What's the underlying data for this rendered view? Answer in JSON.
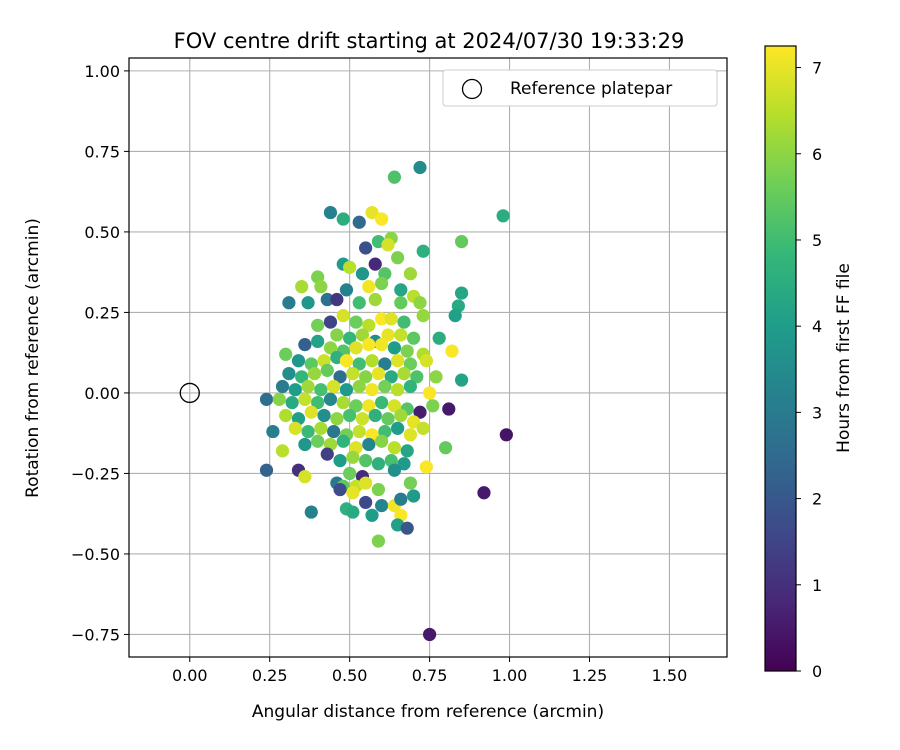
{
  "chart_data": {
    "type": "scatter",
    "title": "FOV centre drift starting at 2024/07/30 19:33:29",
    "xlabel": "Angular distance from reference (arcmin)",
    "ylabel": "Rotation from reference (arcmin)",
    "xlim": [
      -0.19,
      1.68
    ],
    "ylim": [
      -0.82,
      1.04
    ],
    "xticks": [
      0.0,
      0.25,
      0.5,
      0.75,
      1.0,
      1.25,
      1.5
    ],
    "xtick_labels": [
      "0.00",
      "0.25",
      "0.50",
      "0.75",
      "1.00",
      "1.25",
      "1.50"
    ],
    "yticks": [
      -0.75,
      -0.5,
      -0.25,
      0.0,
      0.25,
      0.5,
      0.75,
      1.0
    ],
    "ytick_labels": [
      "−0.75",
      "−0.50",
      "−0.25",
      "0.00",
      "0.25",
      "0.50",
      "0.75",
      "1.00"
    ],
    "grid": true,
    "legend": {
      "placement": "upper-right",
      "entries": [
        "Reference platepar"
      ]
    },
    "reference_point": {
      "x": 0.0,
      "y": 0.0,
      "label": "Reference platepar"
    },
    "colorbar": {
      "label": "Hours from first FF file",
      "colormap": "viridis",
      "range": [
        0,
        7.25
      ],
      "ticks": [
        0,
        1,
        2,
        3,
        4,
        5,
        6,
        7
      ],
      "tick_labels": [
        "0",
        "1",
        "2",
        "3",
        "4",
        "5",
        "6",
        "7"
      ]
    },
    "colormap_stops": [
      "#440154",
      "#482878",
      "#3e4989",
      "#31688e",
      "#26828e",
      "#1f9e89",
      "#35b779",
      "#6ece58",
      "#b5de2b",
      "#fde725"
    ],
    "points": [
      {
        "x": 0.72,
        "y": 0.7,
        "h": 3.5
      },
      {
        "x": 0.64,
        "y": 0.67,
        "h": 5.2
      },
      {
        "x": 0.98,
        "y": 0.55,
        "h": 4.5
      },
      {
        "x": 0.44,
        "y": 0.56,
        "h": 3.2
      },
      {
        "x": 0.48,
        "y": 0.54,
        "h": 4.5
      },
      {
        "x": 0.53,
        "y": 0.53,
        "h": 2.5
      },
      {
        "x": 0.57,
        "y": 0.56,
        "h": 7.0
      },
      {
        "x": 0.6,
        "y": 0.54,
        "h": 7.2
      },
      {
        "x": 0.63,
        "y": 0.48,
        "h": 6.0
      },
      {
        "x": 0.85,
        "y": 0.47,
        "h": 5.5
      },
      {
        "x": 0.59,
        "y": 0.47,
        "h": 5.0
      },
      {
        "x": 0.55,
        "y": 0.45,
        "h": 1.8
      },
      {
        "x": 0.62,
        "y": 0.46,
        "h": 6.8
      },
      {
        "x": 0.73,
        "y": 0.44,
        "h": 4.6
      },
      {
        "x": 0.65,
        "y": 0.42,
        "h": 5.8
      },
      {
        "x": 0.58,
        "y": 0.4,
        "h": 0.8
      },
      {
        "x": 0.48,
        "y": 0.4,
        "h": 4.0
      },
      {
        "x": 0.5,
        "y": 0.39,
        "h": 6.5
      },
      {
        "x": 0.54,
        "y": 0.37,
        "h": 3.8
      },
      {
        "x": 0.61,
        "y": 0.37,
        "h": 5.3
      },
      {
        "x": 0.69,
        "y": 0.37,
        "h": 6.2
      },
      {
        "x": 0.4,
        "y": 0.36,
        "h": 5.8
      },
      {
        "x": 0.35,
        "y": 0.33,
        "h": 6.3
      },
      {
        "x": 0.41,
        "y": 0.33,
        "h": 6.0
      },
      {
        "x": 0.49,
        "y": 0.32,
        "h": 3.2
      },
      {
        "x": 0.56,
        "y": 0.33,
        "h": 7.1
      },
      {
        "x": 0.6,
        "y": 0.34,
        "h": 5.8
      },
      {
        "x": 0.66,
        "y": 0.32,
        "h": 4.3
      },
      {
        "x": 0.7,
        "y": 0.3,
        "h": 6.5
      },
      {
        "x": 0.85,
        "y": 0.31,
        "h": 4.3
      },
      {
        "x": 0.31,
        "y": 0.28,
        "h": 3.0
      },
      {
        "x": 0.37,
        "y": 0.28,
        "h": 3.8
      },
      {
        "x": 0.43,
        "y": 0.29,
        "h": 2.8
      },
      {
        "x": 0.46,
        "y": 0.29,
        "h": 1.2
      },
      {
        "x": 0.53,
        "y": 0.28,
        "h": 5.0
      },
      {
        "x": 0.58,
        "y": 0.29,
        "h": 6.2
      },
      {
        "x": 0.66,
        "y": 0.28,
        "h": 5.5
      },
      {
        "x": 0.72,
        "y": 0.28,
        "h": 6.0
      },
      {
        "x": 0.84,
        "y": 0.27,
        "h": 4.4
      },
      {
        "x": 0.83,
        "y": 0.24,
        "h": 4.1
      },
      {
        "x": 0.48,
        "y": 0.24,
        "h": 6.8
      },
      {
        "x": 0.52,
        "y": 0.22,
        "h": 5.6
      },
      {
        "x": 0.56,
        "y": 0.21,
        "h": 6.5
      },
      {
        "x": 0.6,
        "y": 0.23,
        "h": 7.2
      },
      {
        "x": 0.63,
        "y": 0.23,
        "h": 6.9
      },
      {
        "x": 0.67,
        "y": 0.22,
        "h": 5.0
      },
      {
        "x": 0.73,
        "y": 0.24,
        "h": 6.1
      },
      {
        "x": 0.4,
        "y": 0.21,
        "h": 5.7
      },
      {
        "x": 0.44,
        "y": 0.22,
        "h": 1.5
      },
      {
        "x": 0.46,
        "y": 0.18,
        "h": 5.9
      },
      {
        "x": 0.5,
        "y": 0.17,
        "h": 4.8
      },
      {
        "x": 0.54,
        "y": 0.18,
        "h": 6.2
      },
      {
        "x": 0.58,
        "y": 0.16,
        "h": 3.5
      },
      {
        "x": 0.62,
        "y": 0.18,
        "h": 7.0
      },
      {
        "x": 0.66,
        "y": 0.18,
        "h": 6.6
      },
      {
        "x": 0.7,
        "y": 0.17,
        "h": 5.4
      },
      {
        "x": 0.78,
        "y": 0.17,
        "h": 4.5
      },
      {
        "x": 0.36,
        "y": 0.15,
        "h": 2.2
      },
      {
        "x": 0.4,
        "y": 0.16,
        "h": 4.2
      },
      {
        "x": 0.44,
        "y": 0.14,
        "h": 6.0
      },
      {
        "x": 0.48,
        "y": 0.13,
        "h": 5.3
      },
      {
        "x": 0.52,
        "y": 0.14,
        "h": 6.9
      },
      {
        "x": 0.56,
        "y": 0.15,
        "h": 7.2
      },
      {
        "x": 0.6,
        "y": 0.15,
        "h": 7.1
      },
      {
        "x": 0.64,
        "y": 0.14,
        "h": 4.0
      },
      {
        "x": 0.68,
        "y": 0.13,
        "h": 5.8
      },
      {
        "x": 0.73,
        "y": 0.12,
        "h": 6.4
      },
      {
        "x": 0.82,
        "y": 0.13,
        "h": 7.2
      },
      {
        "x": 0.3,
        "y": 0.12,
        "h": 5.6
      },
      {
        "x": 0.34,
        "y": 0.1,
        "h": 3.8
      },
      {
        "x": 0.38,
        "y": 0.09,
        "h": 5.4
      },
      {
        "x": 0.42,
        "y": 0.1,
        "h": 6.7
      },
      {
        "x": 0.46,
        "y": 0.11,
        "h": 4.6
      },
      {
        "x": 0.49,
        "y": 0.1,
        "h": 7.2
      },
      {
        "x": 0.53,
        "y": 0.09,
        "h": 5.0
      },
      {
        "x": 0.57,
        "y": 0.1,
        "h": 6.4
      },
      {
        "x": 0.61,
        "y": 0.09,
        "h": 3.1
      },
      {
        "x": 0.65,
        "y": 0.1,
        "h": 6.9
      },
      {
        "x": 0.69,
        "y": 0.09,
        "h": 5.6
      },
      {
        "x": 0.74,
        "y": 0.1,
        "h": 6.8
      },
      {
        "x": 0.31,
        "y": 0.06,
        "h": 3.6
      },
      {
        "x": 0.35,
        "y": 0.05,
        "h": 4.8
      },
      {
        "x": 0.39,
        "y": 0.06,
        "h": 6.1
      },
      {
        "x": 0.43,
        "y": 0.07,
        "h": 5.5
      },
      {
        "x": 0.47,
        "y": 0.05,
        "h": 2.6
      },
      {
        "x": 0.51,
        "y": 0.06,
        "h": 6.6
      },
      {
        "x": 0.55,
        "y": 0.05,
        "h": 5.9
      },
      {
        "x": 0.59,
        "y": 0.06,
        "h": 7.0
      },
      {
        "x": 0.63,
        "y": 0.05,
        "h": 4.4
      },
      {
        "x": 0.67,
        "y": 0.06,
        "h": 6.3
      },
      {
        "x": 0.71,
        "y": 0.05,
        "h": 5.2
      },
      {
        "x": 0.77,
        "y": 0.05,
        "h": 6.0
      },
      {
        "x": 0.29,
        "y": 0.02,
        "h": 3.0
      },
      {
        "x": 0.33,
        "y": 0.01,
        "h": 4.0
      },
      {
        "x": 0.37,
        "y": 0.02,
        "h": 6.2
      },
      {
        "x": 0.41,
        "y": 0.01,
        "h": 5.1
      },
      {
        "x": 0.45,
        "y": 0.02,
        "h": 6.8
      },
      {
        "x": 0.49,
        "y": 0.01,
        "h": 3.9
      },
      {
        "x": 0.53,
        "y": 0.02,
        "h": 6.0
      },
      {
        "x": 0.57,
        "y": 0.01,
        "h": 7.1
      },
      {
        "x": 0.61,
        "y": 0.02,
        "h": 5.7
      },
      {
        "x": 0.65,
        "y": 0.01,
        "h": 6.5
      },
      {
        "x": 0.69,
        "y": 0.02,
        "h": 4.7
      },
      {
        "x": 0.75,
        "y": 0.0,
        "h": 7.2
      },
      {
        "x": 0.85,
        "y": 0.04,
        "h": 4.2
      },
      {
        "x": 0.24,
        "y": -0.02,
        "h": 2.6
      },
      {
        "x": 0.28,
        "y": -0.02,
        "h": 5.9
      },
      {
        "x": 0.32,
        "y": -0.03,
        "h": 4.4
      },
      {
        "x": 0.36,
        "y": -0.02,
        "h": 6.6
      },
      {
        "x": 0.4,
        "y": -0.03,
        "h": 5.0
      },
      {
        "x": 0.44,
        "y": -0.02,
        "h": 3.4
      },
      {
        "x": 0.48,
        "y": -0.03,
        "h": 6.3
      },
      {
        "x": 0.52,
        "y": -0.04,
        "h": 5.6
      },
      {
        "x": 0.56,
        "y": -0.04,
        "h": 7.1
      },
      {
        "x": 0.6,
        "y": -0.03,
        "h": 4.9
      },
      {
        "x": 0.64,
        "y": -0.04,
        "h": 6.8
      },
      {
        "x": 0.68,
        "y": -0.05,
        "h": 5.3
      },
      {
        "x": 0.72,
        "y": -0.06,
        "h": 0.6
      },
      {
        "x": 0.76,
        "y": -0.04,
        "h": 5.8
      },
      {
        "x": 0.81,
        "y": -0.05,
        "h": 0.5
      },
      {
        "x": 0.3,
        "y": -0.07,
        "h": 6.4
      },
      {
        "x": 0.34,
        "y": -0.08,
        "h": 4.1
      },
      {
        "x": 0.38,
        "y": -0.06,
        "h": 6.9
      },
      {
        "x": 0.42,
        "y": -0.07,
        "h": 3.6
      },
      {
        "x": 0.46,
        "y": -0.08,
        "h": 6.0
      },
      {
        "x": 0.5,
        "y": -0.07,
        "h": 5.1
      },
      {
        "x": 0.54,
        "y": -0.08,
        "h": 6.7
      },
      {
        "x": 0.58,
        "y": -0.07,
        "h": 4.6
      },
      {
        "x": 0.62,
        "y": -0.08,
        "h": 5.5
      },
      {
        "x": 0.66,
        "y": -0.07,
        "h": 6.2
      },
      {
        "x": 0.7,
        "y": -0.09,
        "h": 7.0
      },
      {
        "x": 0.26,
        "y": -0.12,
        "h": 3.1
      },
      {
        "x": 0.33,
        "y": -0.11,
        "h": 6.8
      },
      {
        "x": 0.37,
        "y": -0.12,
        "h": 4.9
      },
      {
        "x": 0.41,
        "y": -0.11,
        "h": 6.3
      },
      {
        "x": 0.45,
        "y": -0.12,
        "h": 2.9
      },
      {
        "x": 0.49,
        "y": -0.13,
        "h": 5.7
      },
      {
        "x": 0.53,
        "y": -0.12,
        "h": 6.6
      },
      {
        "x": 0.57,
        "y": -0.13,
        "h": 7.2
      },
      {
        "x": 0.61,
        "y": -0.12,
        "h": 5.0
      },
      {
        "x": 0.65,
        "y": -0.11,
        "h": 4.0
      },
      {
        "x": 0.69,
        "y": -0.13,
        "h": 6.9
      },
      {
        "x": 0.73,
        "y": -0.11,
        "h": 6.6
      },
      {
        "x": 0.99,
        "y": -0.13,
        "h": 0.4
      },
      {
        "x": 0.36,
        "y": -0.16,
        "h": 3.8
      },
      {
        "x": 0.4,
        "y": -0.15,
        "h": 5.6
      },
      {
        "x": 0.44,
        "y": -0.16,
        "h": 6.2
      },
      {
        "x": 0.48,
        "y": -0.15,
        "h": 4.7
      },
      {
        "x": 0.52,
        "y": -0.17,
        "h": 6.9
      },
      {
        "x": 0.56,
        "y": -0.16,
        "h": 3.3
      },
      {
        "x": 0.6,
        "y": -0.15,
        "h": 5.9
      },
      {
        "x": 0.64,
        "y": -0.17,
        "h": 6.5
      },
      {
        "x": 0.68,
        "y": -0.18,
        "h": 4.3
      },
      {
        "x": 0.8,
        "y": -0.17,
        "h": 5.5
      },
      {
        "x": 0.29,
        "y": -0.18,
        "h": 6.5
      },
      {
        "x": 0.43,
        "y": -0.19,
        "h": 1.4
      },
      {
        "x": 0.47,
        "y": -0.21,
        "h": 4.0
      },
      {
        "x": 0.51,
        "y": -0.2,
        "h": 6.1
      },
      {
        "x": 0.55,
        "y": -0.21,
        "h": 5.3
      },
      {
        "x": 0.59,
        "y": -0.22,
        "h": 4.6
      },
      {
        "x": 0.63,
        "y": -0.21,
        "h": 5.1
      },
      {
        "x": 0.67,
        "y": -0.22,
        "h": 3.9
      },
      {
        "x": 0.74,
        "y": -0.23,
        "h": 7.2
      },
      {
        "x": 0.24,
        "y": -0.24,
        "h": 2.3
      },
      {
        "x": 0.34,
        "y": -0.24,
        "h": 1.0
      },
      {
        "x": 0.36,
        "y": -0.26,
        "h": 6.8
      },
      {
        "x": 0.5,
        "y": -0.25,
        "h": 5.6
      },
      {
        "x": 0.54,
        "y": -0.26,
        "h": 0.9
      },
      {
        "x": 0.64,
        "y": -0.24,
        "h": 3.6
      },
      {
        "x": 0.46,
        "y": -0.28,
        "h": 2.9
      },
      {
        "x": 0.48,
        "y": -0.29,
        "h": 5.4
      },
      {
        "x": 0.52,
        "y": -0.29,
        "h": 6.6
      },
      {
        "x": 0.55,
        "y": -0.28,
        "h": 6.9
      },
      {
        "x": 0.59,
        "y": -0.3,
        "h": 5.8
      },
      {
        "x": 0.69,
        "y": -0.28,
        "h": 5.7
      },
      {
        "x": 0.47,
        "y": -0.3,
        "h": 1.7
      },
      {
        "x": 0.51,
        "y": -0.31,
        "h": 7.0
      },
      {
        "x": 0.92,
        "y": -0.31,
        "h": 0.5
      },
      {
        "x": 0.55,
        "y": -0.34,
        "h": 1.6
      },
      {
        "x": 0.6,
        "y": -0.35,
        "h": 3.3
      },
      {
        "x": 0.64,
        "y": -0.35,
        "h": 7.1
      },
      {
        "x": 0.66,
        "y": -0.33,
        "h": 3.0
      },
      {
        "x": 0.7,
        "y": -0.32,
        "h": 3.9
      },
      {
        "x": 0.38,
        "y": -0.37,
        "h": 3.2
      },
      {
        "x": 0.49,
        "y": -0.36,
        "h": 4.6
      },
      {
        "x": 0.51,
        "y": -0.37,
        "h": 4.4
      },
      {
        "x": 0.57,
        "y": -0.38,
        "h": 4.0
      },
      {
        "x": 0.66,
        "y": -0.38,
        "h": 7.2
      },
      {
        "x": 0.65,
        "y": -0.41,
        "h": 4.1
      },
      {
        "x": 0.68,
        "y": -0.42,
        "h": 2.0
      },
      {
        "x": 0.59,
        "y": -0.46,
        "h": 5.8
      },
      {
        "x": 0.75,
        "y": -0.75,
        "h": 0.5
      }
    ]
  }
}
